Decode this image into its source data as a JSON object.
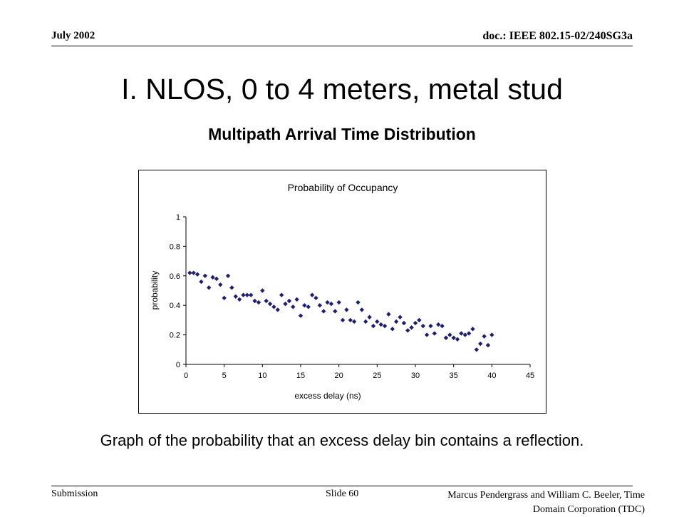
{
  "header": {
    "date": "July 2002",
    "doc": "doc.: IEEE 802.15-02/240SG3a"
  },
  "slide": {
    "title": "I.  NLOS, 0 to 4 meters, metal stud",
    "subtitle": "Multipath Arrival Time Distribution",
    "caption": "Graph of the probability that an excess delay bin contains a reflection."
  },
  "footer": {
    "left": "Submission",
    "middle": "Slide 60",
    "right": "Marcus Pendergrass and William  C. Beeler, Time Domain Corporation (TDC)"
  },
  "colors": {
    "marker": "#1f1f6e",
    "axis": "#000000"
  },
  "chart_data": {
    "type": "scatter",
    "title": "Probability of Occupancy",
    "xlabel": "excess delay (ns)",
    "ylabel": "probability",
    "xlim": [
      0,
      45
    ],
    "ylim": [
      0,
      1
    ],
    "xticks": [
      "0",
      "5",
      "10",
      "15",
      "20",
      "25",
      "30",
      "35",
      "40",
      "45"
    ],
    "yticks": [
      "0",
      "0.2",
      "0.4",
      "0.6",
      "0.8",
      "1"
    ],
    "grid": false,
    "legend": "none",
    "series": [
      {
        "marker": "diamond",
        "x": [
          0.5,
          1.0,
          1.5,
          2.0,
          2.5,
          3.0,
          3.5,
          4.0,
          4.5,
          5.0,
          5.5,
          6.0,
          6.5,
          7.0,
          7.5,
          8.0,
          8.5,
          9.0,
          9.5,
          10.0,
          10.5,
          11.0,
          11.5,
          12.0,
          12.5,
          13.0,
          13.5,
          14.0,
          14.5,
          15.0,
          15.5,
          16.0,
          16.5,
          17.0,
          17.5,
          18.0,
          18.5,
          19.0,
          19.5,
          20.0,
          20.5,
          21.0,
          21.5,
          22.0,
          22.5,
          23.0,
          23.5,
          24.0,
          24.5,
          25.0,
          25.5,
          26.0,
          26.5,
          27.0,
          27.5,
          28.0,
          28.5,
          29.0,
          29.5,
          30.0,
          30.5,
          31.0,
          31.5,
          32.0,
          32.5,
          33.0,
          33.5,
          34.0,
          34.5,
          35.0,
          35.5,
          36.0,
          36.5,
          37.0,
          37.5,
          38.0,
          38.5,
          39.0,
          39.5,
          40.0
        ],
        "y": [
          0.62,
          0.62,
          0.61,
          0.56,
          0.6,
          0.52,
          0.59,
          0.58,
          0.54,
          0.45,
          0.6,
          0.52,
          0.46,
          0.44,
          0.47,
          0.47,
          0.47,
          0.43,
          0.42,
          0.5,
          0.43,
          0.41,
          0.39,
          0.37,
          0.47,
          0.41,
          0.43,
          0.39,
          0.44,
          0.33,
          0.4,
          0.39,
          0.47,
          0.45,
          0.4,
          0.36,
          0.42,
          0.41,
          0.36,
          0.42,
          0.3,
          0.37,
          0.3,
          0.29,
          0.42,
          0.37,
          0.29,
          0.32,
          0.26,
          0.29,
          0.27,
          0.26,
          0.34,
          0.24,
          0.29,
          0.32,
          0.28,
          0.23,
          0.25,
          0.28,
          0.3,
          0.26,
          0.2,
          0.26,
          0.21,
          0.27,
          0.26,
          0.18,
          0.2,
          0.18,
          0.17,
          0.21,
          0.2,
          0.21,
          0.24,
          0.1,
          0.14,
          0.19,
          0.13,
          0.2
        ]
      }
    ]
  }
}
